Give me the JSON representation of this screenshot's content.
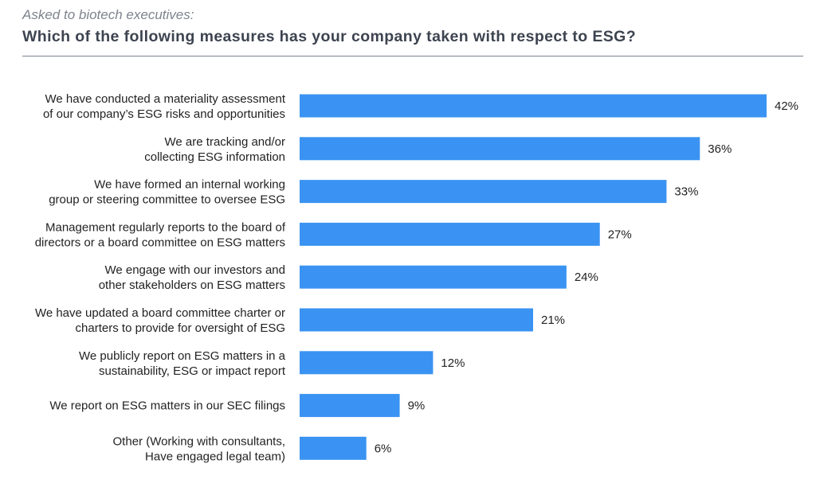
{
  "chart_data": {
    "type": "bar",
    "orientation": "horizontal",
    "subtitle": "Asked to biotech executives:",
    "title": "Which of the following measures has your company taken with respect to ESG?",
    "categories": [
      [
        "We have conducted a materiality assessment",
        "of our company’s ESG risks and opportunities"
      ],
      [
        "We are tracking and/or",
        "collecting ESG information"
      ],
      [
        "We have formed an internal working",
        "group or steering committee to oversee ESG"
      ],
      [
        "Management regularly reports to the board of",
        "directors or a board committee on ESG matters"
      ],
      [
        "We engage with our investors and",
        "other stakeholders on ESG matters"
      ],
      [
        "We have updated a board committee charter or",
        "charters to provide for oversight of ESG"
      ],
      [
        "We publicly report on ESG matters in a",
        "sustainability, ESG or impact report"
      ],
      [
        "We report on ESG matters in our SEC filings"
      ],
      [
        "Other (Working with consultants,",
        "Have engaged legal team)"
      ]
    ],
    "values": [
      42,
      36,
      33,
      27,
      24,
      21,
      12,
      9,
      6
    ],
    "data_labels": [
      "42%",
      "36%",
      "33%",
      "27%",
      "24%",
      "21%",
      "12%",
      "9%",
      "6%"
    ],
    "unit": "%",
    "grid": false,
    "bar_color": "#3a93f2"
  }
}
